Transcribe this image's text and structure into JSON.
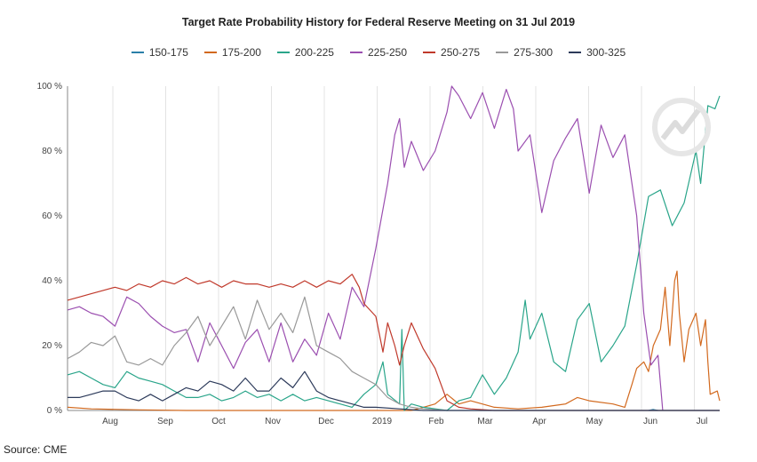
{
  "chart_data": {
    "type": "line",
    "title": "Target Rate Probability History for Federal Reserve Meeting on 31 Jul 2019",
    "xlabel": "",
    "ylabel": "",
    "x_ticks": [
      "Aug",
      "Sep",
      "Oct",
      "Nov",
      "Dec",
      "2019",
      "Feb",
      "Mar",
      "Apr",
      "May",
      "Jun",
      "Jul"
    ],
    "y_ticks": [
      "0 %",
      "20 %",
      "40 %",
      "60 %",
      "80 %",
      "100 %"
    ],
    "ylim": [
      0,
      100
    ],
    "legend_position": "top",
    "grid": "vertical",
    "series": [
      {
        "name": "150-175",
        "color": "#2a7fa8",
        "points": [
          [
            24.5,
            0
          ],
          [
            24.7,
            0.3
          ],
          [
            24.9,
            0
          ]
        ]
      },
      {
        "name": "175-200",
        "color": "#d2691e",
        "points": [
          [
            0,
            1
          ],
          [
            1,
            0.5
          ],
          [
            3,
            0.2
          ],
          [
            5,
            0
          ],
          [
            10,
            0
          ],
          [
            14.5,
            0
          ],
          [
            15,
            1
          ],
          [
            15.5,
            2
          ],
          [
            16,
            5
          ],
          [
            16.5,
            2
          ],
          [
            17,
            3
          ],
          [
            18,
            1
          ],
          [
            19,
            0.5
          ],
          [
            20,
            1
          ],
          [
            21,
            2
          ],
          [
            21.5,
            4
          ],
          [
            22,
            3
          ],
          [
            23,
            2
          ],
          [
            23.5,
            1
          ],
          [
            23.8,
            8
          ],
          [
            24,
            13
          ],
          [
            24.3,
            15
          ],
          [
            24.5,
            12
          ],
          [
            24.7,
            20
          ],
          [
            25,
            25
          ],
          [
            25.2,
            38
          ],
          [
            25.4,
            20
          ],
          [
            25.5,
            30
          ],
          [
            25.6,
            40
          ],
          [
            25.7,
            43
          ],
          [
            25.8,
            30
          ],
          [
            26.0,
            15
          ],
          [
            26.2,
            25
          ],
          [
            26.5,
            30
          ],
          [
            26.7,
            20
          ],
          [
            26.9,
            28
          ],
          [
            27.0,
            15
          ],
          [
            27.1,
            5
          ],
          [
            27.4,
            6
          ],
          [
            27.5,
            3
          ]
        ]
      },
      {
        "name": "200-225",
        "color": "#2aa58a",
        "points": [
          [
            0,
            11
          ],
          [
            0.5,
            12
          ],
          [
            1,
            10
          ],
          [
            1.5,
            8
          ],
          [
            2,
            7
          ],
          [
            2.5,
            12
          ],
          [
            3,
            10
          ],
          [
            3.5,
            9
          ],
          [
            4,
            8
          ],
          [
            4.5,
            6
          ],
          [
            5,
            4
          ],
          [
            5.5,
            4
          ],
          [
            6,
            5
          ],
          [
            6.5,
            3
          ],
          [
            7,
            4
          ],
          [
            7.5,
            6
          ],
          [
            8,
            4
          ],
          [
            8.5,
            5
          ],
          [
            9,
            3
          ],
          [
            9.5,
            5
          ],
          [
            10,
            3
          ],
          [
            10.5,
            4
          ],
          [
            11,
            3
          ],
          [
            11.5,
            2
          ],
          [
            12,
            1
          ],
          [
            12.5,
            5
          ],
          [
            13,
            8
          ],
          [
            13.3,
            15
          ],
          [
            13.5,
            5
          ],
          [
            14,
            2
          ],
          [
            14.1,
            25
          ],
          [
            14.2,
            0
          ],
          [
            14.5,
            2
          ],
          [
            15,
            1
          ],
          [
            16,
            0
          ],
          [
            16.5,
            3
          ],
          [
            17,
            4
          ],
          [
            17.5,
            11
          ],
          [
            18,
            5
          ],
          [
            18.5,
            10
          ],
          [
            19,
            18
          ],
          [
            19.3,
            34
          ],
          [
            19.5,
            22
          ],
          [
            20,
            30
          ],
          [
            20.5,
            15
          ],
          [
            21,
            12
          ],
          [
            21.5,
            28
          ],
          [
            22,
            33
          ],
          [
            22.5,
            15
          ],
          [
            23,
            20
          ],
          [
            23.5,
            26
          ],
          [
            24,
            45
          ],
          [
            24.5,
            66
          ],
          [
            25,
            68
          ],
          [
            25.5,
            57
          ],
          [
            26,
            64
          ],
          [
            26.5,
            80
          ],
          [
            26.7,
            70
          ],
          [
            27,
            94
          ],
          [
            27.3,
            93
          ],
          [
            27.5,
            97
          ]
        ]
      },
      {
        "name": "225-250",
        "color": "#9b4fb0",
        "points": [
          [
            0,
            31
          ],
          [
            0.5,
            32
          ],
          [
            1,
            30
          ],
          [
            1.5,
            29
          ],
          [
            2,
            26
          ],
          [
            2.5,
            35
          ],
          [
            3,
            33
          ],
          [
            3.5,
            29
          ],
          [
            4,
            26
          ],
          [
            4.5,
            24
          ],
          [
            5,
            25
          ],
          [
            5.5,
            15
          ],
          [
            6,
            27
          ],
          [
            6.5,
            20
          ],
          [
            7,
            13
          ],
          [
            7.5,
            21
          ],
          [
            8,
            25
          ],
          [
            8.5,
            15
          ],
          [
            9,
            27
          ],
          [
            9.5,
            15
          ],
          [
            10,
            22
          ],
          [
            10.5,
            17
          ],
          [
            11,
            30
          ],
          [
            11.5,
            22
          ],
          [
            12,
            38
          ],
          [
            12.5,
            32
          ],
          [
            13,
            50
          ],
          [
            13.5,
            70
          ],
          [
            13.8,
            85
          ],
          [
            14,
            90
          ],
          [
            14.2,
            75
          ],
          [
            14.5,
            83
          ],
          [
            15,
            74
          ],
          [
            15.5,
            80
          ],
          [
            16,
            92
          ],
          [
            16.2,
            100
          ],
          [
            16.5,
            97
          ],
          [
            17,
            90
          ],
          [
            17.5,
            98
          ],
          [
            18,
            87
          ],
          [
            18.5,
            99
          ],
          [
            18.8,
            93
          ],
          [
            19,
            80
          ],
          [
            19.5,
            85
          ],
          [
            20,
            61
          ],
          [
            20.5,
            77
          ],
          [
            21,
            84
          ],
          [
            21.5,
            90
          ],
          [
            22,
            67
          ],
          [
            22.5,
            88
          ],
          [
            23,
            78
          ],
          [
            23.5,
            85
          ],
          [
            24,
            60
          ],
          [
            24.3,
            30
          ],
          [
            24.6,
            14
          ],
          [
            24.9,
            17
          ],
          [
            25.1,
            0
          ]
        ]
      },
      {
        "name": "250-275",
        "color": "#c0392b",
        "points": [
          [
            0,
            34
          ],
          [
            0.5,
            35
          ],
          [
            1,
            36
          ],
          [
            1.5,
            37
          ],
          [
            2,
            38
          ],
          [
            2.5,
            37
          ],
          [
            3,
            39
          ],
          [
            3.5,
            38
          ],
          [
            4,
            40
          ],
          [
            4.5,
            39
          ],
          [
            5,
            41
          ],
          [
            5.5,
            39
          ],
          [
            6,
            40
          ],
          [
            6.5,
            38
          ],
          [
            7,
            40
          ],
          [
            7.5,
            39
          ],
          [
            8,
            39
          ],
          [
            8.5,
            38
          ],
          [
            9,
            39
          ],
          [
            9.5,
            38
          ],
          [
            10,
            40
          ],
          [
            10.5,
            38
          ],
          [
            11,
            40
          ],
          [
            11.5,
            39
          ],
          [
            12,
            42
          ],
          [
            12.3,
            38
          ],
          [
            12.5,
            33
          ],
          [
            13,
            29
          ],
          [
            13.3,
            18
          ],
          [
            13.5,
            27
          ],
          [
            13.8,
            20
          ],
          [
            14,
            14
          ],
          [
            14.2,
            20
          ],
          [
            14.5,
            27
          ],
          [
            15,
            19
          ],
          [
            15.5,
            13
          ],
          [
            16,
            3
          ],
          [
            16.5,
            1
          ],
          [
            17,
            0.5
          ],
          [
            18,
            0
          ],
          [
            27.5,
            0
          ]
        ]
      },
      {
        "name": "275-300",
        "color": "#999999",
        "points": [
          [
            0,
            16
          ],
          [
            0.5,
            18
          ],
          [
            1,
            21
          ],
          [
            1.5,
            20
          ],
          [
            2,
            23
          ],
          [
            2.5,
            15
          ],
          [
            3,
            14
          ],
          [
            3.5,
            16
          ],
          [
            4,
            14
          ],
          [
            4.5,
            20
          ],
          [
            5,
            24
          ],
          [
            5.5,
            29
          ],
          [
            6,
            20
          ],
          [
            6.5,
            26
          ],
          [
            7,
            32
          ],
          [
            7.5,
            22
          ],
          [
            8,
            34
          ],
          [
            8.5,
            25
          ],
          [
            9,
            30
          ],
          [
            9.5,
            24
          ],
          [
            10,
            35
          ],
          [
            10.5,
            20
          ],
          [
            11,
            18
          ],
          [
            11.5,
            16
          ],
          [
            12,
            12
          ],
          [
            12.5,
            10
          ],
          [
            13,
            8
          ],
          [
            13.5,
            4
          ],
          [
            14,
            2
          ],
          [
            14.5,
            1
          ],
          [
            15,
            0.5
          ],
          [
            16,
            0
          ],
          [
            27.5,
            0
          ]
        ]
      },
      {
        "name": "300-325",
        "color": "#2c3a5a",
        "points": [
          [
            0,
            4
          ],
          [
            0.5,
            4
          ],
          [
            1,
            5
          ],
          [
            1.5,
            6
          ],
          [
            2,
            6
          ],
          [
            2.5,
            4
          ],
          [
            3,
            3
          ],
          [
            3.5,
            5
          ],
          [
            4,
            3
          ],
          [
            4.5,
            5
          ],
          [
            5,
            7
          ],
          [
            5.5,
            6
          ],
          [
            6,
            9
          ],
          [
            6.5,
            8
          ],
          [
            7,
            6
          ],
          [
            7.5,
            10
          ],
          [
            8,
            6
          ],
          [
            8.5,
            6
          ],
          [
            9,
            10
          ],
          [
            9.5,
            7
          ],
          [
            10,
            12
          ],
          [
            10.5,
            6
          ],
          [
            11,
            4
          ],
          [
            11.5,
            3
          ],
          [
            12,
            2
          ],
          [
            12.5,
            1
          ],
          [
            13,
            1
          ],
          [
            14,
            0.5
          ],
          [
            15,
            0
          ],
          [
            27.5,
            0
          ]
        ]
      }
    ]
  },
  "source_label": "Source: CME"
}
